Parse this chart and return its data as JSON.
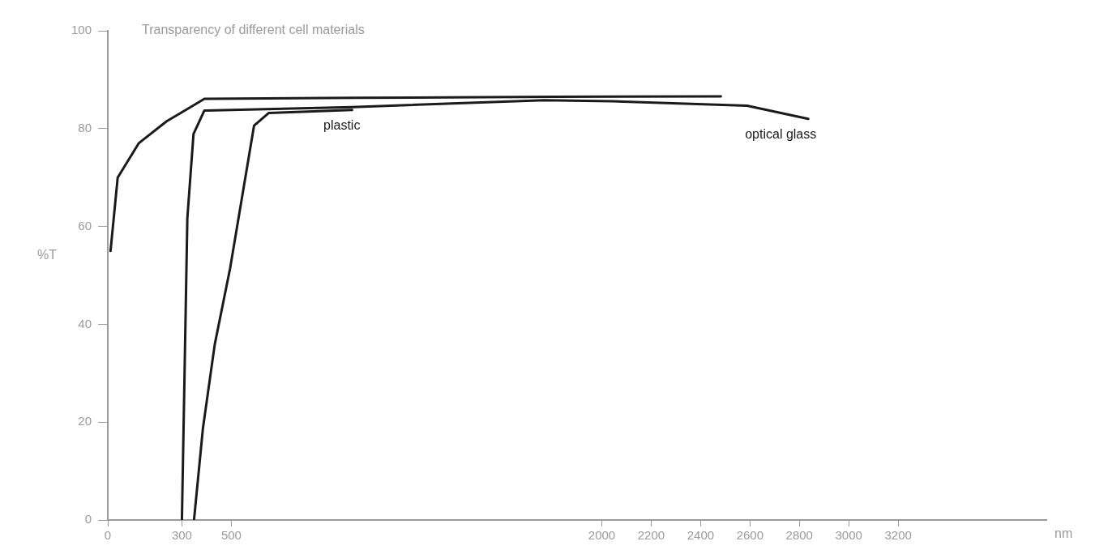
{
  "chart_data": {
    "type": "line",
    "title": "Transparency of different cell materials",
    "xlabel": "nm",
    "ylabel": "%T",
    "xlim": [
      0,
      3800
    ],
    "xticks": [
      0,
      300,
      500,
      2000,
      2200,
      2400,
      2600,
      2800,
      3000,
      3200
    ],
    "ylim": [
      0,
      100
    ],
    "yticks": [
      0,
      20,
      40,
      60,
      80,
      100
    ],
    "grid": false,
    "legend": false,
    "marker": "none",
    "line_style": "solid",
    "series": [
      {
        "color": "#1a1a1a",
        "x": [
          11,
          40,
          125,
          238,
          335,
          391,
          1000,
          1800,
          2482
        ],
        "values": [
          55,
          70,
          77,
          81.5,
          84.4,
          86.1,
          86.3,
          86.5,
          86.6
        ]
      },
      {
        "name": "optical glass",
        "color": "#1a1a1a",
        "x": [
          300,
          322,
          347,
          391,
          989,
          1767,
          2042,
          2588,
          2836
        ],
        "values": [
          0,
          61.7,
          78.9,
          83.7,
          84.4,
          85.8,
          85.6,
          84.7,
          82
        ]
      },
      {
        "name": "plastic",
        "color": "#1a1a1a",
        "x": [
          349,
          385,
          433,
          495,
          592,
          652,
          989
        ],
        "values": [
          0,
          18.7,
          35.9,
          51.4,
          80.6,
          83.2,
          83.8
        ]
      }
    ]
  }
}
